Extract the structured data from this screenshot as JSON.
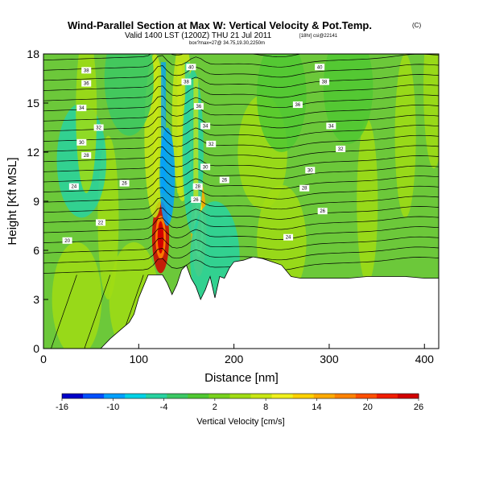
{
  "header": {
    "title_main": "Wind-Parallel Section at Max W: Vertical Velocity & Pot.Temp.",
    "title_mark": "(C)",
    "valid_line": "Valid 1400 LST (1200Z) THU 21 Jul 2011",
    "valid_suffix": "[18hr] csi@22141",
    "location_line": "box?max=27@ 34.75,19.30,2250m"
  },
  "chart_data": {
    "type": "heatmap",
    "xlabel": "Distance [nm]",
    "ylabel": "Height [Kft MSL]",
    "xlim": [
      0,
      415
    ],
    "ylim": [
      0,
      18
    ],
    "x_ticks": [
      0,
      100,
      200,
      300,
      400
    ],
    "y_ticks": [
      0,
      3,
      6,
      9,
      12,
      15,
      18
    ],
    "grid": false,
    "colorbar": {
      "label": "Vertical Velocity [cm/s]",
      "tick_labels": [
        "-16",
        "-10",
        "-4",
        "2",
        "8",
        "14",
        "20",
        "26"
      ],
      "min": -16,
      "max": 26,
      "colors": [
        "#0000c8",
        "#0050ff",
        "#00a0ff",
        "#00d2e6",
        "#28d2a0",
        "#3cc864",
        "#50c832",
        "#78d21e",
        "#a0dc14",
        "#c8e614",
        "#f0f01e",
        "#ffd200",
        "#ffaa00",
        "#ff8200",
        "#ff5000",
        "#f01e00",
        "#d20000"
      ]
    },
    "terrain_profile": {
      "x": [
        0,
        20,
        40,
        60,
        70,
        80,
        90,
        95,
        100,
        105,
        110,
        115,
        120,
        125,
        130,
        135,
        140,
        145,
        150,
        155,
        160,
        165,
        170,
        175,
        180,
        185,
        190,
        195,
        200,
        210,
        220,
        230,
        240,
        250,
        260,
        270,
        280,
        290,
        300,
        310,
        320,
        340,
        360,
        380,
        400,
        415
      ],
      "y": [
        0,
        0,
        0,
        0,
        0.6,
        1.1,
        1.6,
        2.1,
        3.1,
        3.8,
        4.5,
        4.5,
        4.5,
        4.5,
        4.0,
        3.3,
        3.9,
        4.8,
        5.1,
        4.3,
        3.8,
        3.0,
        3.6,
        4.4,
        3.1,
        4.4,
        4.3,
        4.9,
        5.3,
        5.4,
        5.6,
        5.5,
        5.3,
        5.1,
        4.4,
        4.3,
        4.3,
        4.3,
        4.3,
        4.3,
        4.3,
        4.4,
        4.4,
        4.4,
        4.3,
        4.3
      ]
    },
    "contour_label_values": [
      "40",
      "38",
      "36",
      "34",
      "32",
      "30",
      "28",
      "26",
      "24",
      "22",
      "20",
      "18"
    ],
    "contour_labels": [
      {
        "x": 45,
        "y": 17.0,
        "text": "38"
      },
      {
        "x": 45,
        "y": 16.2,
        "text": "36"
      },
      {
        "x": 40,
        "y": 14.7,
        "text": "34"
      },
      {
        "x": 58,
        "y": 13.5,
        "text": "32"
      },
      {
        "x": 40,
        "y": 12.6,
        "text": "30"
      },
      {
        "x": 45,
        "y": 11.8,
        "text": "28"
      },
      {
        "x": 32,
        "y": 9.9,
        "text": "24"
      },
      {
        "x": 85,
        "y": 10.1,
        "text": "26"
      },
      {
        "x": 60,
        "y": 7.7,
        "text": "22"
      },
      {
        "x": 25,
        "y": 6.6,
        "text": "20"
      },
      {
        "x": 155,
        "y": 17.2,
        "text": "40"
      },
      {
        "x": 150,
        "y": 16.3,
        "text": "38"
      },
      {
        "x": 163,
        "y": 14.8,
        "text": "36"
      },
      {
        "x": 170,
        "y": 13.6,
        "text": "34"
      },
      {
        "x": 176,
        "y": 12.5,
        "text": "32"
      },
      {
        "x": 170,
        "y": 11.1,
        "text": "30"
      },
      {
        "x": 162,
        "y": 9.9,
        "text": "28"
      },
      {
        "x": 160,
        "y": 9.1,
        "text": "26"
      },
      {
        "x": 190,
        "y": 10.3,
        "text": "26"
      },
      {
        "x": 290,
        "y": 17.2,
        "text": "40"
      },
      {
        "x": 295,
        "y": 16.3,
        "text": "38"
      },
      {
        "x": 267,
        "y": 14.9,
        "text": "36"
      },
      {
        "x": 302,
        "y": 13.6,
        "text": "34"
      },
      {
        "x": 312,
        "y": 12.2,
        "text": "32"
      },
      {
        "x": 280,
        "y": 10.9,
        "text": "30"
      },
      {
        "x": 274,
        "y": 9.8,
        "text": "28"
      },
      {
        "x": 293,
        "y": 8.4,
        "text": "26"
      },
      {
        "x": 257,
        "y": 6.8,
        "text": "24"
      }
    ],
    "w_features": [
      {
        "x": 123,
        "y": 6.8,
        "w": 26
      },
      {
        "x": 163,
        "y": 7.4,
        "w": 14
      },
      {
        "x": 117,
        "y": 13.0,
        "w": 8
      },
      {
        "x": 146,
        "y": 14.0,
        "w": 8
      },
      {
        "x": 130,
        "y": 10.5,
        "w": -10
      },
      {
        "x": 157,
        "y": 12.0,
        "w": -6
      },
      {
        "x": 180,
        "y": 5.5,
        "w": -4
      },
      {
        "x": 68,
        "y": 8.0,
        "w": 6
      },
      {
        "x": 40,
        "y": 11.5,
        "w": -4
      },
      {
        "x": 45,
        "y": 14.5,
        "w": 6
      },
      {
        "x": 250,
        "y": 6.5,
        "w": 5
      },
      {
        "x": 340,
        "y": 9.0,
        "w": 6
      },
      {
        "x": 380,
        "y": 13.0,
        "w": 6
      },
      {
        "x": 410,
        "y": 16.0,
        "w": 6
      },
      {
        "x": 230,
        "y": 12.0,
        "w": 5
      },
      {
        "x": 90,
        "y": 16.5,
        "w": -2
      },
      {
        "x": 250,
        "y": 15.5,
        "w": -1
      },
      {
        "x": 320,
        "y": 16.0,
        "w": -1
      },
      {
        "x": 35,
        "y": 3.0,
        "w": 4
      },
      {
        "x": 95,
        "y": 3.0,
        "w": 4
      }
    ]
  }
}
